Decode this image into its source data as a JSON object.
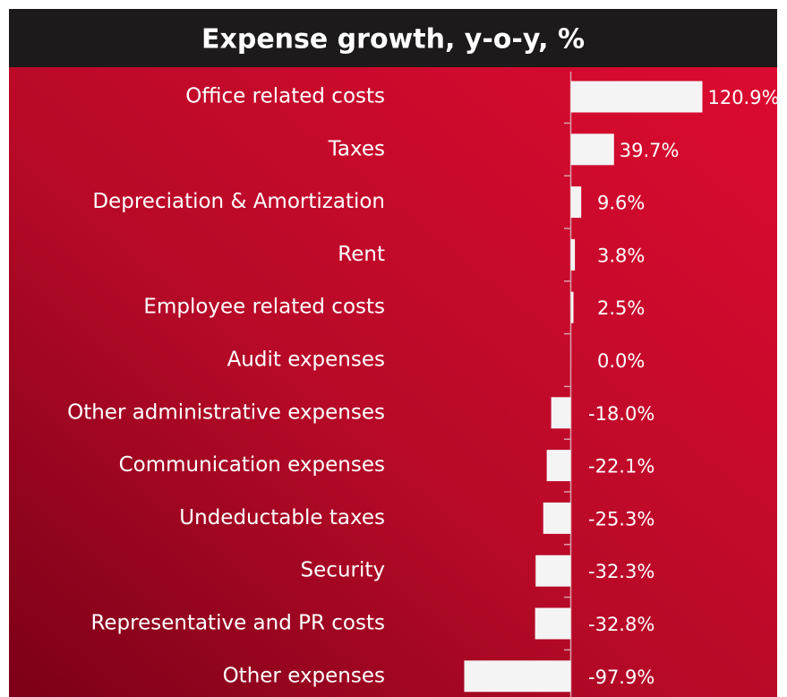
{
  "chart_data": {
    "type": "bar",
    "orientation": "horizontal",
    "title": "Expense growth, y-o-y, %",
    "categories": [
      "Office related costs",
      "Taxes",
      "Depreciation & Amortization",
      "Rent",
      "Employee related costs",
      "Audit expenses",
      "Other administrative expenses",
      "Communication expenses",
      "Undeductable taxes",
      "Security",
      "Representative and PR costs",
      "Other expenses"
    ],
    "values": [
      120.9,
      39.7,
      9.6,
      3.8,
      2.5,
      0.0,
      -18.0,
      -22.1,
      -25.3,
      -32.3,
      -32.8,
      -97.9
    ],
    "value_labels": [
      "120.9%",
      "39.7%",
      "9.6%",
      "3.8%",
      "2.5%",
      "0.0%",
      "-18.0%",
      "-22.1%",
      "-25.3%",
      "-32.3%",
      "-32.8%",
      "-97.9%"
    ],
    "color": "#f5f4f4"
  }
}
